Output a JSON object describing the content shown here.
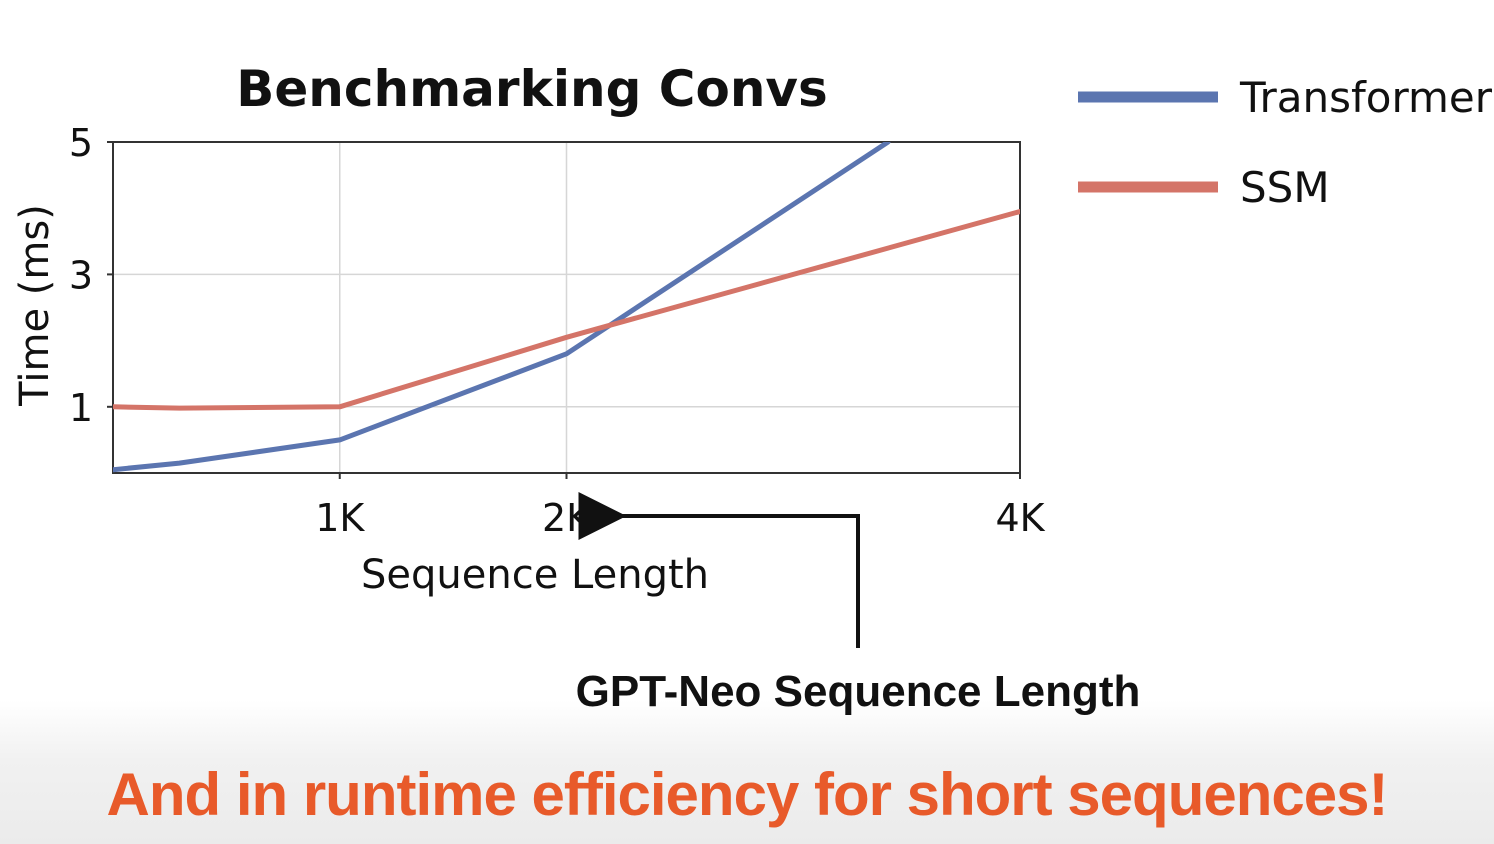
{
  "chart_data": {
    "type": "line",
    "title": "Benchmarking Convs",
    "xlabel": "Sequence Length",
    "ylabel": "Time (ms)",
    "x_ticks": [
      {
        "value": 1024,
        "label": "1K"
      },
      {
        "value": 2048,
        "label": "2K"
      },
      {
        "value": 4096,
        "label": "4K"
      }
    ],
    "y_ticks": [
      {
        "value": 1,
        "label": "1"
      },
      {
        "value": 3,
        "label": "3"
      },
      {
        "value": 5,
        "label": "5"
      }
    ],
    "xlim": [
      0,
      4096
    ],
    "ylim": [
      0,
      5
    ],
    "grid": true,
    "legend_position": "right",
    "series": [
      {
        "name": "Transformer",
        "color": "#5b75b0",
        "points": [
          [
            0,
            0.05
          ],
          [
            300,
            0.15
          ],
          [
            1024,
            0.5
          ],
          [
            2048,
            1.8
          ],
          [
            3500,
            5.0
          ]
        ]
      },
      {
        "name": "SSM",
        "color": "#d47468",
        "points": [
          [
            0,
            1.0
          ],
          [
            300,
            0.98
          ],
          [
            1024,
            1.0
          ],
          [
            2048,
            2.05
          ],
          [
            4096,
            3.95
          ]
        ]
      }
    ],
    "annotation": {
      "text": "GPT-Neo Sequence Length",
      "points_to_x": 2048
    }
  },
  "footer": {
    "text": "And in runtime efficiency for short sequences!",
    "color": "#e85a2a"
  }
}
